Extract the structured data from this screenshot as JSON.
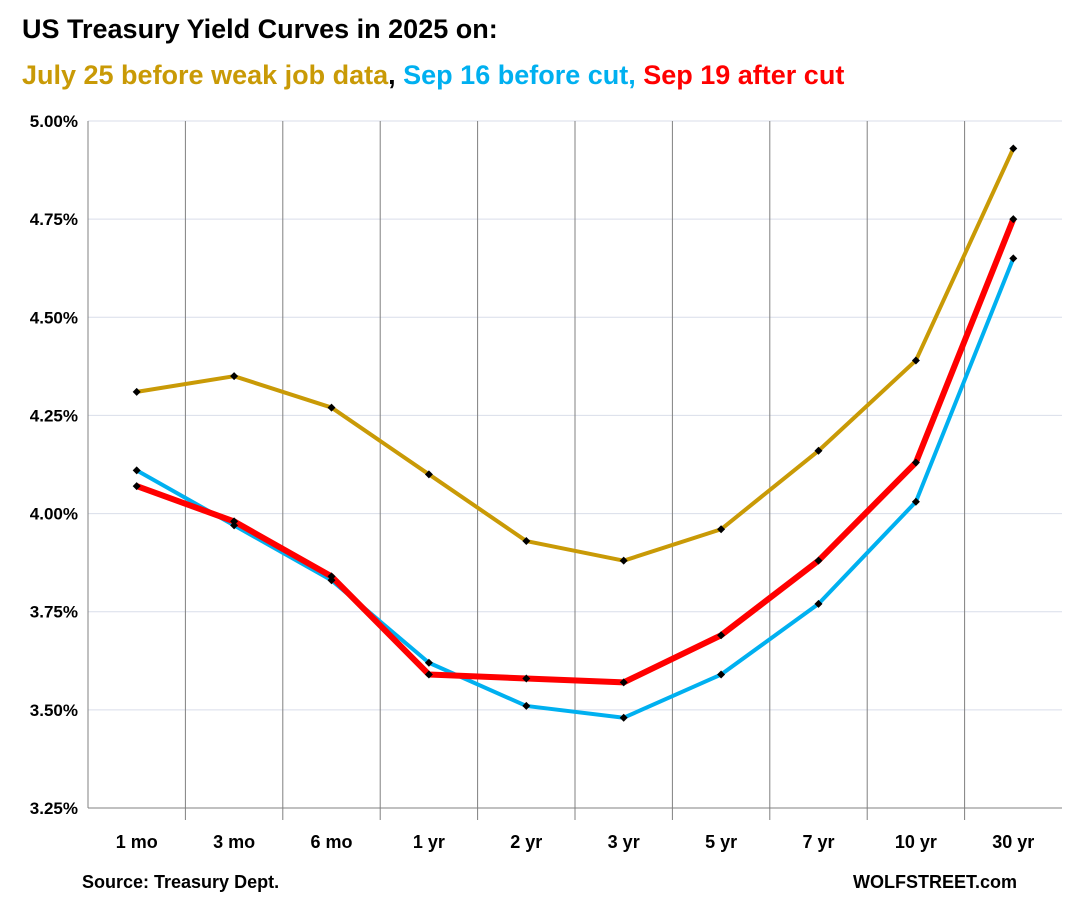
{
  "chart_data": {
    "type": "line",
    "title": "US Treasury Yield Curves in 2025 on:",
    "subtitle_parts": [
      {
        "text": "July 25 before weak job data",
        "color": "#C99A06"
      },
      {
        "text": ", ",
        "color": "#000000"
      },
      {
        "text": "Sep 16 before cut, ",
        "color": "#00B0F0"
      },
      {
        "text": "Sep 19 after cut",
        "color": "#FF0000"
      }
    ],
    "categories": [
      "1 mo",
      "3 mo",
      "6 mo",
      "1 yr",
      "2 yr",
      "3 yr",
      "5 yr",
      "7 yr",
      "10 yr",
      "30 yr"
    ],
    "ylim": [
      3.25,
      5.0
    ],
    "yticks": [
      3.25,
      3.5,
      3.75,
      4.0,
      4.25,
      4.5,
      4.75,
      5.0
    ],
    "ytick_labels": [
      "3.25%",
      "3.50%",
      "3.75%",
      "4.00%",
      "4.25%",
      "4.50%",
      "4.75%",
      "5.00%"
    ],
    "grid": true,
    "series": [
      {
        "name": "July 25 before weak job data",
        "color": "#C99A06",
        "values": [
          4.31,
          4.35,
          4.27,
          4.1,
          3.93,
          3.88,
          3.96,
          4.16,
          4.39,
          4.93
        ]
      },
      {
        "name": "Sep 16 before cut",
        "color": "#00B0F0",
        "values": [
          4.11,
          3.97,
          3.83,
          3.62,
          3.51,
          3.48,
          3.59,
          3.77,
          4.03,
          4.65
        ]
      },
      {
        "name": "Sep 19 after cut",
        "color": "#FF0000",
        "values": [
          4.07,
          3.98,
          3.84,
          3.59,
          3.58,
          3.57,
          3.69,
          3.88,
          4.13,
          4.75
        ]
      }
    ]
  },
  "footer": {
    "source": "Source: Treasury Dept.",
    "brand": "WOLFSTREET.com"
  }
}
